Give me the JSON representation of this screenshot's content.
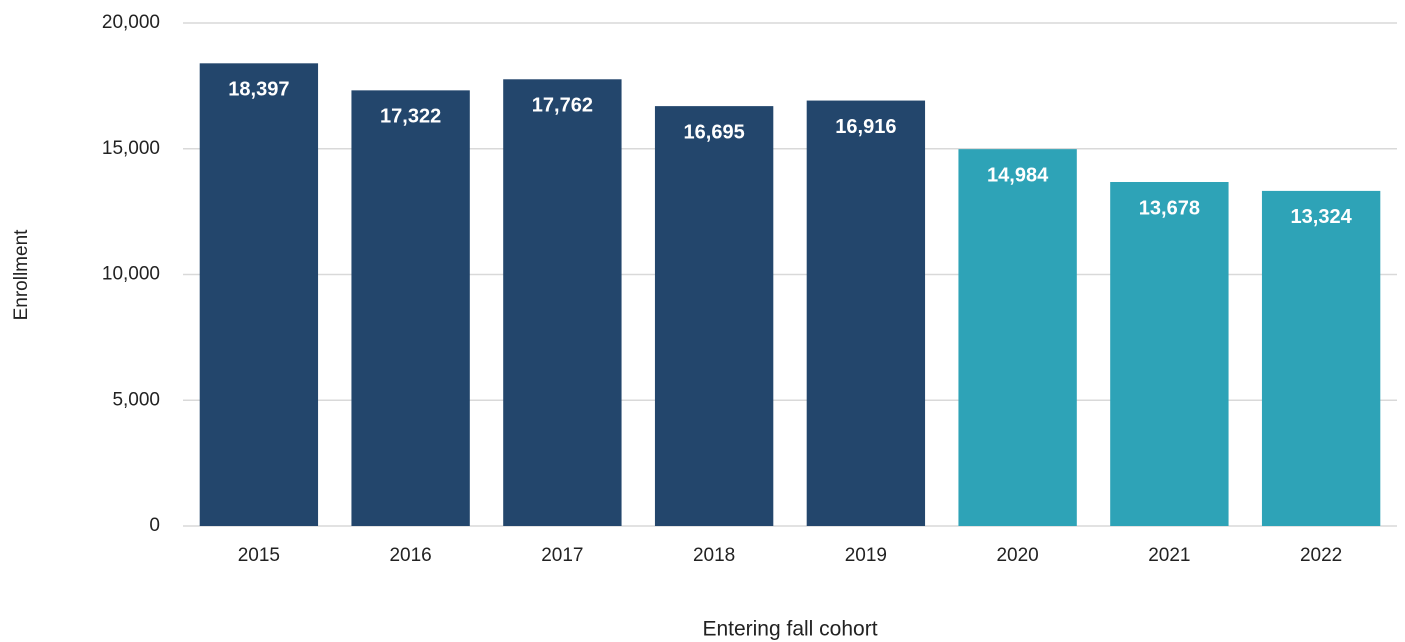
{
  "chart_data": {
    "type": "bar",
    "xlabel": "Entering fall cohort",
    "ylabel": "Enrollment",
    "categories": [
      "2015",
      "2016",
      "2017",
      "2018",
      "2019",
      "2020",
      "2021",
      "2022"
    ],
    "values": [
      18397,
      17322,
      17762,
      16695,
      16916,
      14984,
      13678,
      13324
    ],
    "value_labels": [
      "18,397",
      "17,322",
      "17,762",
      "16,695",
      "16,916",
      "14,984",
      "13,678",
      "13,324"
    ],
    "colors": [
      "#23466c",
      "#23466c",
      "#23466c",
      "#23466c",
      "#23466c",
      "#2ea3b7",
      "#2ea3b7",
      "#2ea3b7"
    ],
    "ylim": [
      0,
      20000
    ],
    "yticks": [
      0,
      {
        "value": 5000,
        "label": "5,000"
      },
      {
        "value": 10000,
        "label": "10,000"
      },
      {
        "value": 15000,
        "label": "15,000"
      },
      {
        "value": 20000,
        "label": "20,000"
      }
    ],
    "grid": true
  }
}
